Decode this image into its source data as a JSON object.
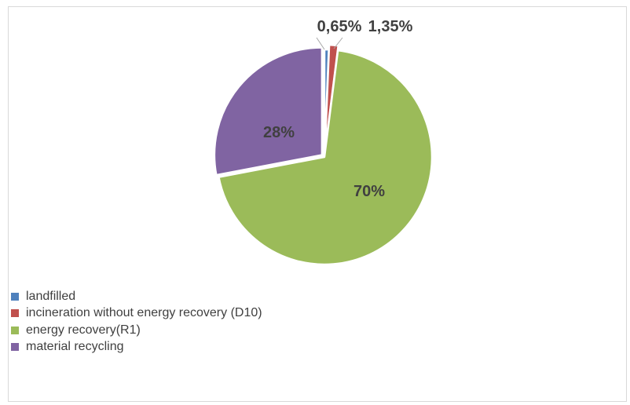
{
  "chart_data": {
    "type": "pie",
    "title": "",
    "slices": [
      {
        "label": "landfilled",
        "value": 0.65,
        "display": "0,65%",
        "color": "#4f81bd"
      },
      {
        "label": "incineration without energy recovery (D10)",
        "value": 1.35,
        "display": "1,35%",
        "color": "#c0504d"
      },
      {
        "label": "energy recovery(R1)",
        "value": 70,
        "display": "70%",
        "color": "#9bbb59"
      },
      {
        "label": "material recycling",
        "value": 28,
        "display": "28%",
        "color": "#8064a2"
      }
    ],
    "legend_position": "bottom-left"
  }
}
